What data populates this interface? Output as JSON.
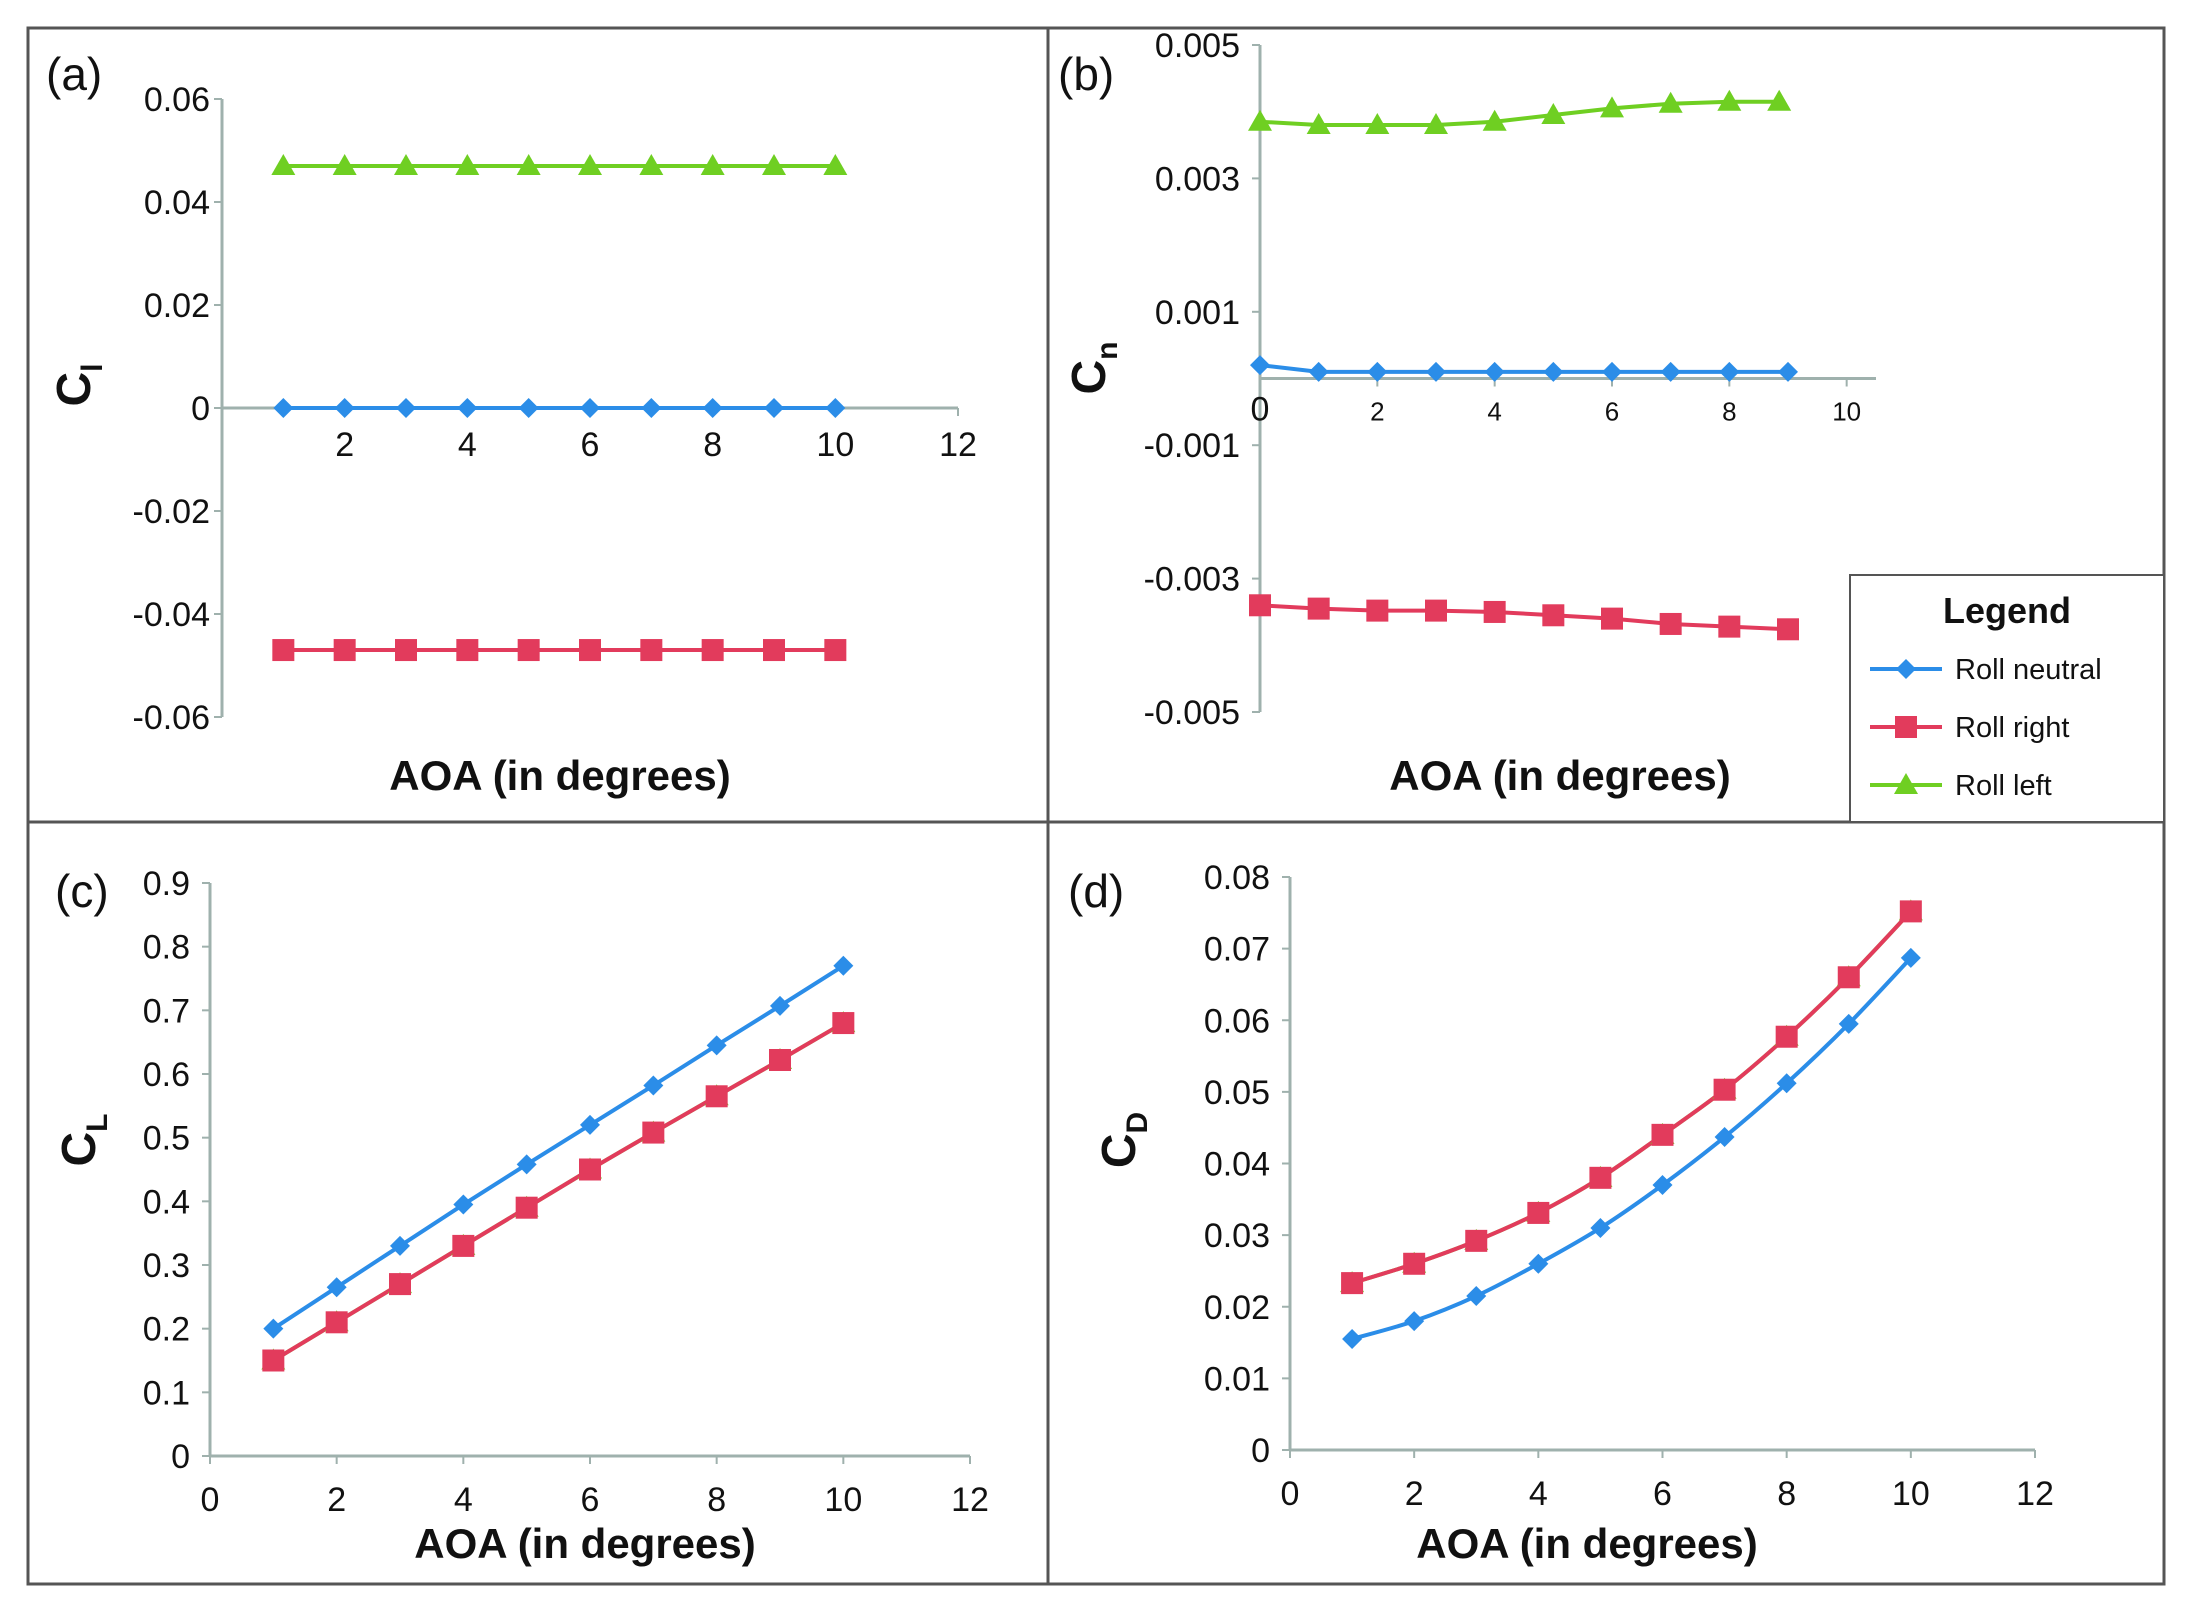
{
  "colors": {
    "neutral": "#2b8de8",
    "right": "#e23b5c",
    "left": "#6fcf22",
    "axis": "#9fb1ad",
    "border": "#555555"
  },
  "legend": {
    "title": "Legend",
    "items": [
      {
        "key": "neutral",
        "label": "Roll neutral",
        "marker": "diamond"
      },
      {
        "key": "right",
        "label": "Roll right",
        "marker": "square"
      },
      {
        "key": "left",
        "label": "Roll left",
        "marker": "triangle"
      }
    ]
  },
  "chart_data": [
    {
      "panel": "(a)",
      "type": "line",
      "xlabel": "AOA (in degrees)",
      "ylabel": "C",
      "ylabel_sub": "l",
      "xlim": [
        0,
        12
      ],
      "ylim": [
        -0.06,
        0.06
      ],
      "xticks": [
        "2",
        "4",
        "6",
        "8",
        "10",
        "12"
      ],
      "yticks": [
        "0.06",
        "0.04",
        "0.02",
        "0",
        "-0.02",
        "-0.04",
        "-0.06"
      ],
      "series": [
        {
          "name": "Roll neutral",
          "x": [
            1,
            2,
            3,
            4,
            5,
            6,
            7,
            8,
            9,
            10
          ],
          "y": [
            0,
            0,
            0,
            0,
            0,
            0,
            0,
            0,
            0,
            0
          ]
        },
        {
          "name": "Roll right",
          "x": [
            1,
            2,
            3,
            4,
            5,
            6,
            7,
            8,
            9,
            10
          ],
          "y": [
            -0.047,
            -0.047,
            -0.047,
            -0.047,
            -0.047,
            -0.047,
            -0.047,
            -0.047,
            -0.047,
            -0.047
          ]
        },
        {
          "name": "Roll left",
          "x": [
            1,
            2,
            3,
            4,
            5,
            6,
            7,
            8,
            9,
            10
          ],
          "y": [
            0.047,
            0.047,
            0.047,
            0.047,
            0.047,
            0.047,
            0.047,
            0.047,
            0.047,
            0.047
          ]
        }
      ]
    },
    {
      "panel": "(b)",
      "type": "line",
      "xlabel": "AOA (in degrees)",
      "ylabel": "C",
      "ylabel_sub": "n",
      "xlim": [
        0,
        10.5
      ],
      "ylim": [
        -0.005,
        0.005
      ],
      "xticks": [
        "0",
        "2",
        "4",
        "6",
        "8",
        "10"
      ],
      "yticks": [
        "0.005",
        "0.003",
        "0.001",
        "-0.001",
        "-0.003",
        "-0.005"
      ],
      "series": [
        {
          "name": "Roll neutral",
          "x": [
            0,
            1,
            2,
            3,
            4,
            5,
            6,
            7,
            8,
            9
          ],
          "y": [
            0.0002,
            0.0001,
            0.0001,
            0.0001,
            0.0001,
            0.0001,
            0.0001,
            0.0001,
            0.0001,
            0.0001
          ]
        },
        {
          "name": "Roll right",
          "x": [
            0,
            1,
            2,
            3,
            4,
            5,
            6,
            7,
            8,
            9
          ],
          "y": [
            -0.0034,
            -0.00345,
            -0.00348,
            -0.00348,
            -0.0035,
            -0.00355,
            -0.0036,
            -0.00368,
            -0.00372,
            -0.00376
          ]
        },
        {
          "name": "Roll left",
          "x": [
            0,
            1,
            2,
            3,
            4,
            5,
            6,
            7,
            8,
            8.85
          ],
          "y": [
            0.00385,
            0.0038,
            0.0038,
            0.0038,
            0.00385,
            0.00395,
            0.00405,
            0.00412,
            0.00415,
            0.00415
          ]
        }
      ]
    },
    {
      "panel": "(c)",
      "type": "line",
      "xlabel": "AOA (in degrees)",
      "ylabel": "C",
      "ylabel_sub": "L",
      "xlim": [
        0,
        12
      ],
      "ylim": [
        0,
        0.9
      ],
      "xticks": [
        "0",
        "2",
        "4",
        "6",
        "8",
        "10",
        "12"
      ],
      "yticks": [
        "0",
        "0.1",
        "0.2",
        "0.3",
        "0.4",
        "0.5",
        "0.6",
        "0.7",
        "0.8",
        "0.9"
      ],
      "series": [
        {
          "name": "Roll neutral",
          "x": [
            1,
            2,
            3,
            4,
            5,
            6,
            7,
            8,
            9,
            10
          ],
          "y": [
            0.2,
            0.265,
            0.33,
            0.395,
            0.458,
            0.52,
            0.582,
            0.645,
            0.707,
            0.77
          ]
        },
        {
          "name": "Roll right",
          "x": [
            1,
            2,
            3,
            4,
            5,
            6,
            7,
            8,
            9,
            10
          ],
          "y": [
            0.15,
            0.21,
            0.27,
            0.33,
            0.39,
            0.45,
            0.508,
            0.565,
            0.622,
            0.68
          ]
        },
        {
          "name": "Roll left",
          "x": [
            1,
            2,
            3,
            4,
            5,
            6,
            7,
            8,
            9,
            10
          ],
          "y": [
            0.15,
            0.21,
            0.27,
            0.33,
            0.39,
            0.45,
            0.508,
            0.565,
            0.622,
            0.68
          ]
        }
      ]
    },
    {
      "panel": "(d)",
      "type": "line",
      "xlabel": "AOA (in degrees)",
      "ylabel": "C",
      "ylabel_sub": "D",
      "xlim": [
        0,
        12
      ],
      "ylim": [
        0,
        0.08
      ],
      "xticks": [
        "0",
        "2",
        "4",
        "6",
        "8",
        "10",
        "12"
      ],
      "yticks": [
        "0",
        "0.01",
        "0.02",
        "0.03",
        "0.04",
        "0.05",
        "0.06",
        "0.07",
        "0.08"
      ],
      "series": [
        {
          "name": "Roll neutral",
          "x": [
            1,
            2,
            3,
            4,
            5,
            6,
            7,
            8,
            9,
            10
          ],
          "y": [
            0.0155,
            0.018,
            0.0215,
            0.026,
            0.031,
            0.037,
            0.0437,
            0.0512,
            0.0595,
            0.0687
          ]
        },
        {
          "name": "Roll right",
          "x": [
            1,
            2,
            3,
            4,
            5,
            6,
            7,
            8,
            9,
            10
          ],
          "y": [
            0.0233,
            0.026,
            0.0292,
            0.0331,
            0.038,
            0.044,
            0.0503,
            0.0577,
            0.066,
            0.0752
          ]
        },
        {
          "name": "Roll left",
          "x": [
            1,
            2,
            3,
            4,
            5,
            6,
            7,
            8,
            9,
            10
          ],
          "y": [
            0.0233,
            0.026,
            0.0292,
            0.0331,
            0.038,
            0.044,
            0.0503,
            0.0577,
            0.066,
            0.0752
          ]
        }
      ]
    }
  ]
}
